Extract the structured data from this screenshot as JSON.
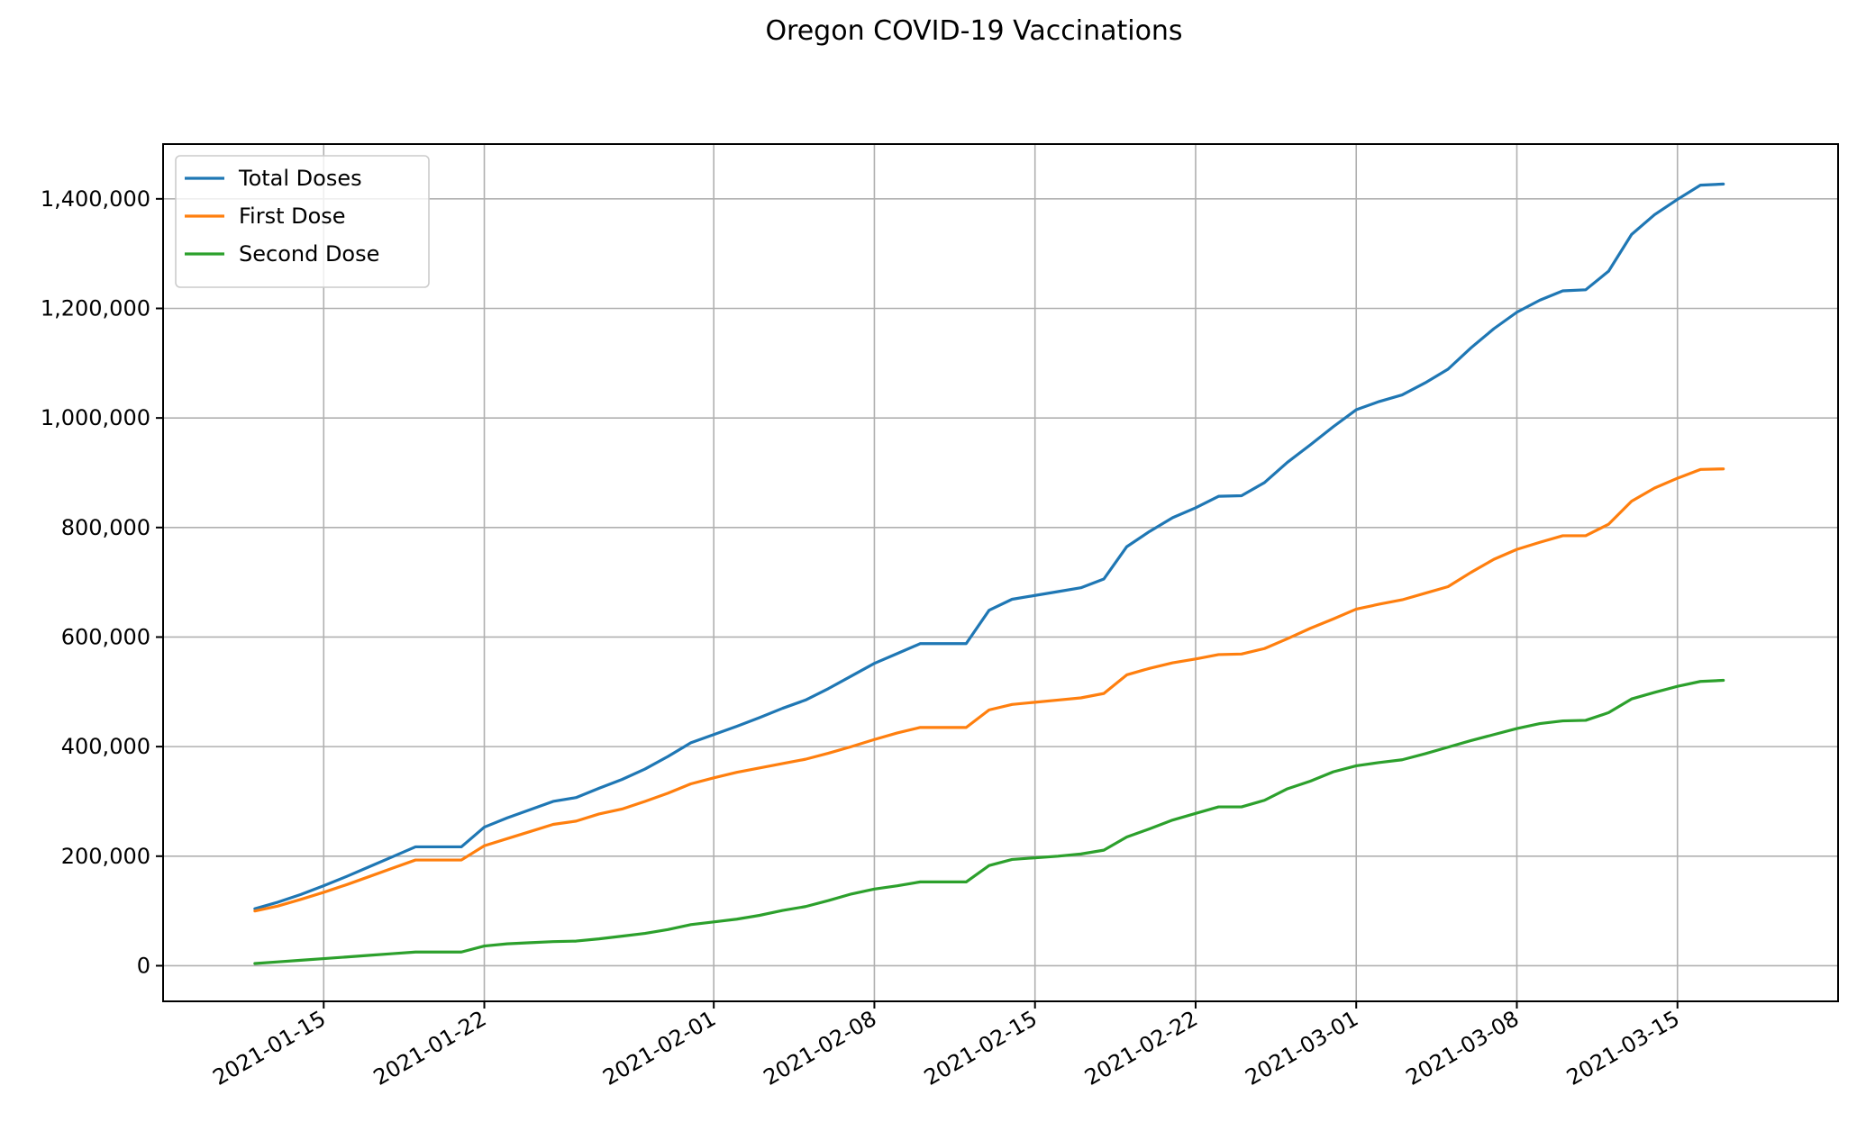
{
  "chart_data": {
    "type": "line",
    "title": "Oregon COVID-19 Vaccinations",
    "xlabel": "",
    "ylabel": "",
    "xlim": [
      "2021-01-08",
      "2021-03-22"
    ],
    "ylim": [
      -65000,
      1500000
    ],
    "grid": true,
    "legend": "top-left",
    "x_ticks": [
      "2021-01-15",
      "2021-01-22",
      "2021-02-01",
      "2021-02-08",
      "2021-02-15",
      "2021-02-22",
      "2021-03-01",
      "2021-03-08",
      "2021-03-15"
    ],
    "y_ticks": [
      0,
      200000,
      400000,
      600000,
      800000,
      1000000,
      1200000,
      1400000
    ],
    "y_tick_labels": [
      "0",
      "200,000",
      "400,000",
      "600,000",
      "800,000",
      "1,000,000",
      "1,200,000",
      "1,400,000"
    ],
    "x": [
      "2021-01-12",
      "2021-01-13",
      "2021-01-14",
      "2021-01-15",
      "2021-01-16",
      "2021-01-17",
      "2021-01-18",
      "2021-01-19",
      "2021-01-20",
      "2021-01-21",
      "2021-01-22",
      "2021-01-23",
      "2021-01-24",
      "2021-01-25",
      "2021-01-26",
      "2021-01-27",
      "2021-01-28",
      "2021-01-29",
      "2021-01-30",
      "2021-01-31",
      "2021-02-01",
      "2021-02-02",
      "2021-02-03",
      "2021-02-04",
      "2021-02-05",
      "2021-02-06",
      "2021-02-07",
      "2021-02-08",
      "2021-02-09",
      "2021-02-10",
      "2021-02-11",
      "2021-02-12",
      "2021-02-13",
      "2021-02-14",
      "2021-02-15",
      "2021-02-16",
      "2021-02-17",
      "2021-02-18",
      "2021-02-19",
      "2021-02-20",
      "2021-02-21",
      "2021-02-22",
      "2021-02-23",
      "2021-02-24",
      "2021-02-25",
      "2021-02-26",
      "2021-02-27",
      "2021-02-28",
      "2021-03-01",
      "2021-03-02",
      "2021-03-03",
      "2021-03-04",
      "2021-03-05",
      "2021-03-06",
      "2021-03-07",
      "2021-03-08",
      "2021-03-09",
      "2021-03-10",
      "2021-03-11",
      "2021-03-12",
      "2021-03-13",
      "2021-03-14",
      "2021-03-15",
      "2021-03-16",
      "2021-03-17"
    ],
    "series": [
      {
        "name": "Total Doses",
        "color": "#1f77b4",
        "values": [
          104000,
          116000,
          130000,
          146000,
          163000,
          181000,
          199000,
          217000,
          217000,
          217000,
          253000,
          270000,
          285000,
          300000,
          307000,
          324000,
          340000,
          359000,
          382000,
          407000,
          422000,
          437000,
          453000,
          470000,
          485000,
          506000,
          529000,
          552000,
          570000,
          588000,
          588000,
          588000,
          649000,
          669000,
          676000,
          683000,
          690000,
          706000,
          765000,
          793000,
          818000,
          836000,
          857000,
          858000,
          882000,
          919000,
          951000,
          984000,
          1015000,
          1030000,
          1042000,
          1064000,
          1089000,
          1128000,
          1163000,
          1193000,
          1215000,
          1232000,
          1234000,
          1268000,
          1335000,
          1371000,
          1399000,
          1425000,
          1427000
        ]
      },
      {
        "name": "First Dose",
        "color": "#ff7f0e",
        "values": [
          100000,
          109000,
          121000,
          134000,
          148000,
          163000,
          178000,
          193000,
          193000,
          193000,
          219000,
          232000,
          245000,
          258000,
          264000,
          277000,
          286000,
          300000,
          315000,
          332000,
          343000,
          353000,
          361000,
          369000,
          377000,
          388000,
          400000,
          413000,
          425000,
          435000,
          435000,
          435000,
          467000,
          477000,
          481000,
          485000,
          489000,
          497000,
          531000,
          543000,
          553000,
          560000,
          568000,
          569000,
          579000,
          597000,
          616000,
          633000,
          651000,
          660000,
          668000,
          680000,
          692000,
          718000,
          742000,
          760000,
          773000,
          785000,
          785000,
          806000,
          848000,
          872000,
          890000,
          906000,
          907000
        ]
      },
      {
        "name": "Second Dose",
        "color": "#2ca02c",
        "values": [
          4000,
          7000,
          10000,
          13000,
          16000,
          19000,
          22000,
          25000,
          25000,
          25000,
          36000,
          40000,
          42000,
          44000,
          45000,
          49000,
          54000,
          59000,
          66000,
          75000,
          80000,
          85000,
          92000,
          101000,
          108000,
          119000,
          131000,
          140000,
          146000,
          153000,
          153000,
          153000,
          183000,
          194000,
          197000,
          200000,
          204000,
          211000,
          235000,
          250000,
          266000,
          278000,
          290000,
          290000,
          302000,
          323000,
          337000,
          354000,
          365000,
          371000,
          376000,
          387000,
          399000,
          411000,
          422000,
          433000,
          442000,
          447000,
          448000,
          462000,
          487000,
          499000,
          510000,
          519000,
          521000
        ]
      }
    ]
  }
}
